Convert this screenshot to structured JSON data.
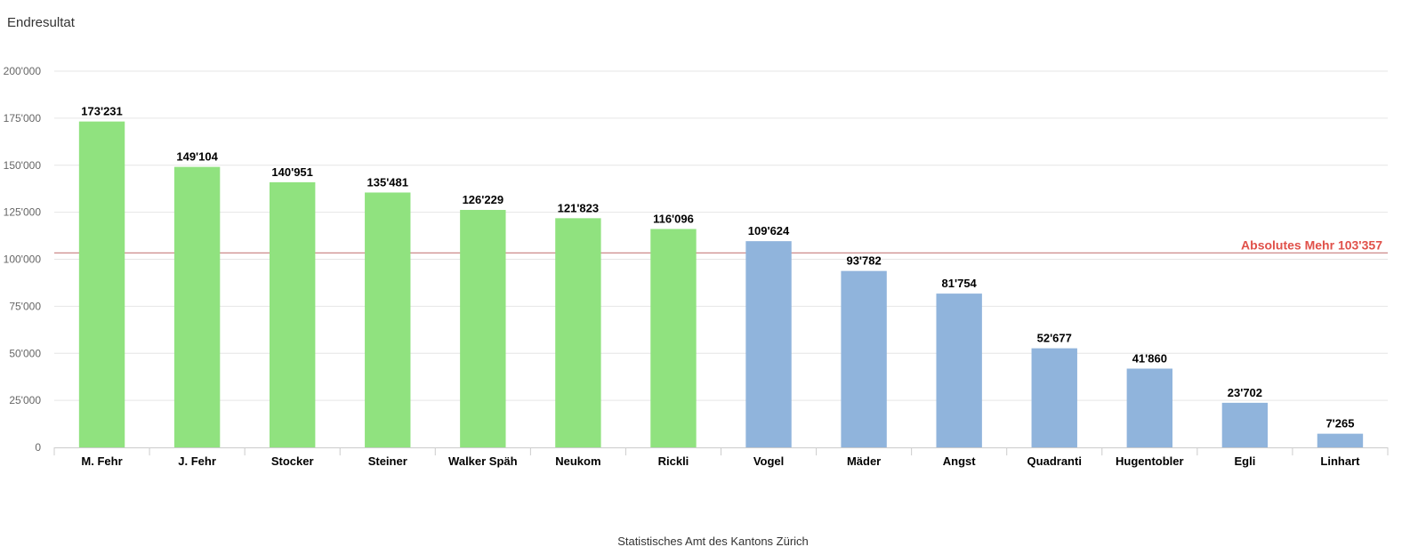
{
  "chart_data": {
    "type": "bar",
    "title": "Endresultat",
    "credit": "Statistisches Amt des Kantons Zürich",
    "categories": [
      "M. Fehr",
      "J. Fehr",
      "Stocker",
      "Steiner",
      "Walker Späh",
      "Neukom",
      "Rickli",
      "Vogel",
      "Mäder",
      "Angst",
      "Quadranti",
      "Hugentobler",
      "Egli",
      "Linhart"
    ],
    "values": [
      173231,
      149104,
      140951,
      135481,
      126229,
      121823,
      116096,
      109624,
      93782,
      81754,
      52677,
      41860,
      23702,
      7265
    ],
    "value_labels": [
      "173'231",
      "149'104",
      "140'951",
      "135'481",
      "126'229",
      "121'823",
      "116'096",
      "109'624",
      "93'782",
      "81'754",
      "52'677",
      "41'860",
      "23'702",
      "7'265"
    ],
    "bar_colors": [
      "#90e27f",
      "#90e27f",
      "#90e27f",
      "#90e27f",
      "#90e27f",
      "#90e27f",
      "#90e27f",
      "#90b4dc",
      "#90b4dc",
      "#90b4dc",
      "#90b4dc",
      "#90b4dc",
      "#90b4dc",
      "#90b4dc"
    ],
    "ylim": [
      0,
      200000
    ],
    "yticks": [
      0,
      25000,
      50000,
      75000,
      100000,
      125000,
      150000,
      175000,
      200000
    ],
    "ytick_labels": [
      "0",
      "25'000",
      "50'000",
      "75'000",
      "100'000",
      "125'000",
      "150'000",
      "175'000",
      "200'000"
    ],
    "grid": true,
    "xlabel": "",
    "ylabel": "",
    "reference_line": {
      "value": 103357,
      "label": "Absolutes Mehr 103'357",
      "line_color": "#cd8a8a",
      "label_color": "#e0514a"
    },
    "colors": {
      "elected": "#90e27f",
      "not_elected": "#90b4dc",
      "grid": "#e6e6e6",
      "axis": "#cccccc"
    }
  }
}
